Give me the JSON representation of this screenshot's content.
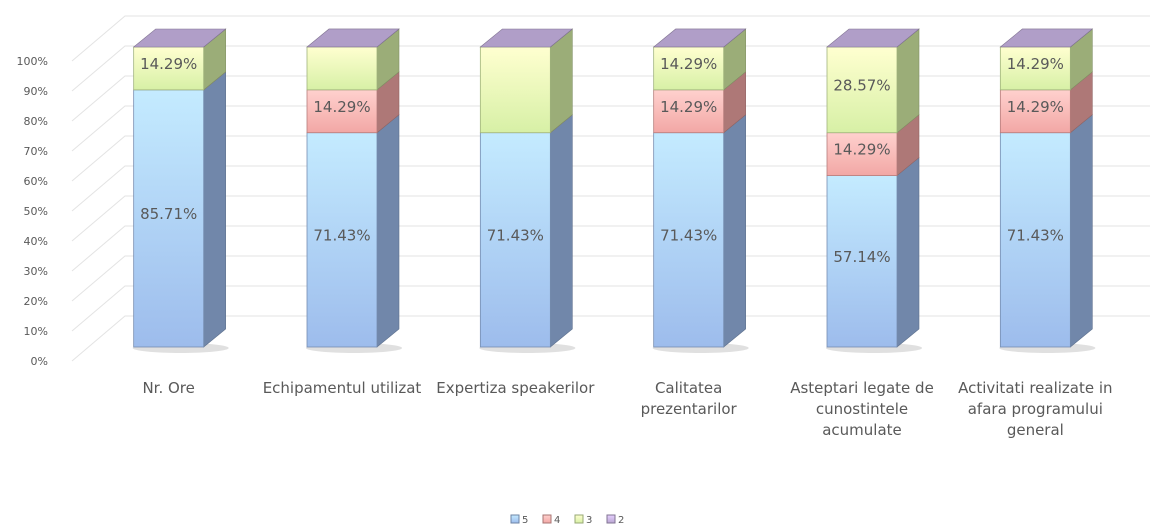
{
  "chart_data": {
    "type": "bar3d_stacked",
    "categories": [
      "Nr. Ore",
      "Echipamentul utilizat",
      "Expertiza speakerilor",
      "Calitatea prezentarilor",
      "Asteptari legate de cunostintele acumulate",
      "Activitati realizate in afara programului general"
    ],
    "series": [
      {
        "name": "5",
        "color": "#9dbcec",
        "values": [
          85.71,
          71.43,
          71.43,
          71.43,
          57.14,
          71.43
        ],
        "value_labels": [
          "85.71%",
          "71.43%",
          "71.43%",
          "71.43%",
          "57.14%",
          "71.43%"
        ]
      },
      {
        "name": "4",
        "color": "#f2a7a5",
        "values": [
          0,
          14.29,
          0,
          14.29,
          14.29,
          14.29
        ],
        "value_labels": [
          null,
          "14.29%",
          null,
          "14.29%",
          "14.29%",
          "14.29%"
        ]
      },
      {
        "name": "3",
        "color": "#d7f0a6",
        "values": [
          14.29,
          14.29,
          28.57,
          14.29,
          28.57,
          14.29
        ],
        "value_labels": [
          "14.29%",
          null,
          null,
          "14.29%",
          "28.57%",
          "14.29%"
        ]
      },
      {
        "name": "2",
        "color": "#b9a6d2",
        "values": [
          0,
          0,
          0,
          0,
          0,
          0
        ],
        "value_labels": [
          null,
          null,
          null,
          null,
          null,
          null
        ]
      }
    ],
    "ylim": [
      0,
      100
    ],
    "yticks": [
      {
        "value": 0,
        "label": "0%"
      },
      {
        "value": 10,
        "label": "10%"
      },
      {
        "value": 20,
        "label": "20%"
      },
      {
        "value": 30,
        "label": "30%"
      },
      {
        "value": 40,
        "label": "40%"
      },
      {
        "value": 50,
        "label": "50%"
      },
      {
        "value": 60,
        "label": "60%"
      },
      {
        "value": 70,
        "label": "70%"
      },
      {
        "value": 80,
        "label": "80%"
      },
      {
        "value": 90,
        "label": "90%"
      },
      {
        "value": 100,
        "label": "100%"
      }
    ],
    "grid": true,
    "legend": "bottom"
  }
}
